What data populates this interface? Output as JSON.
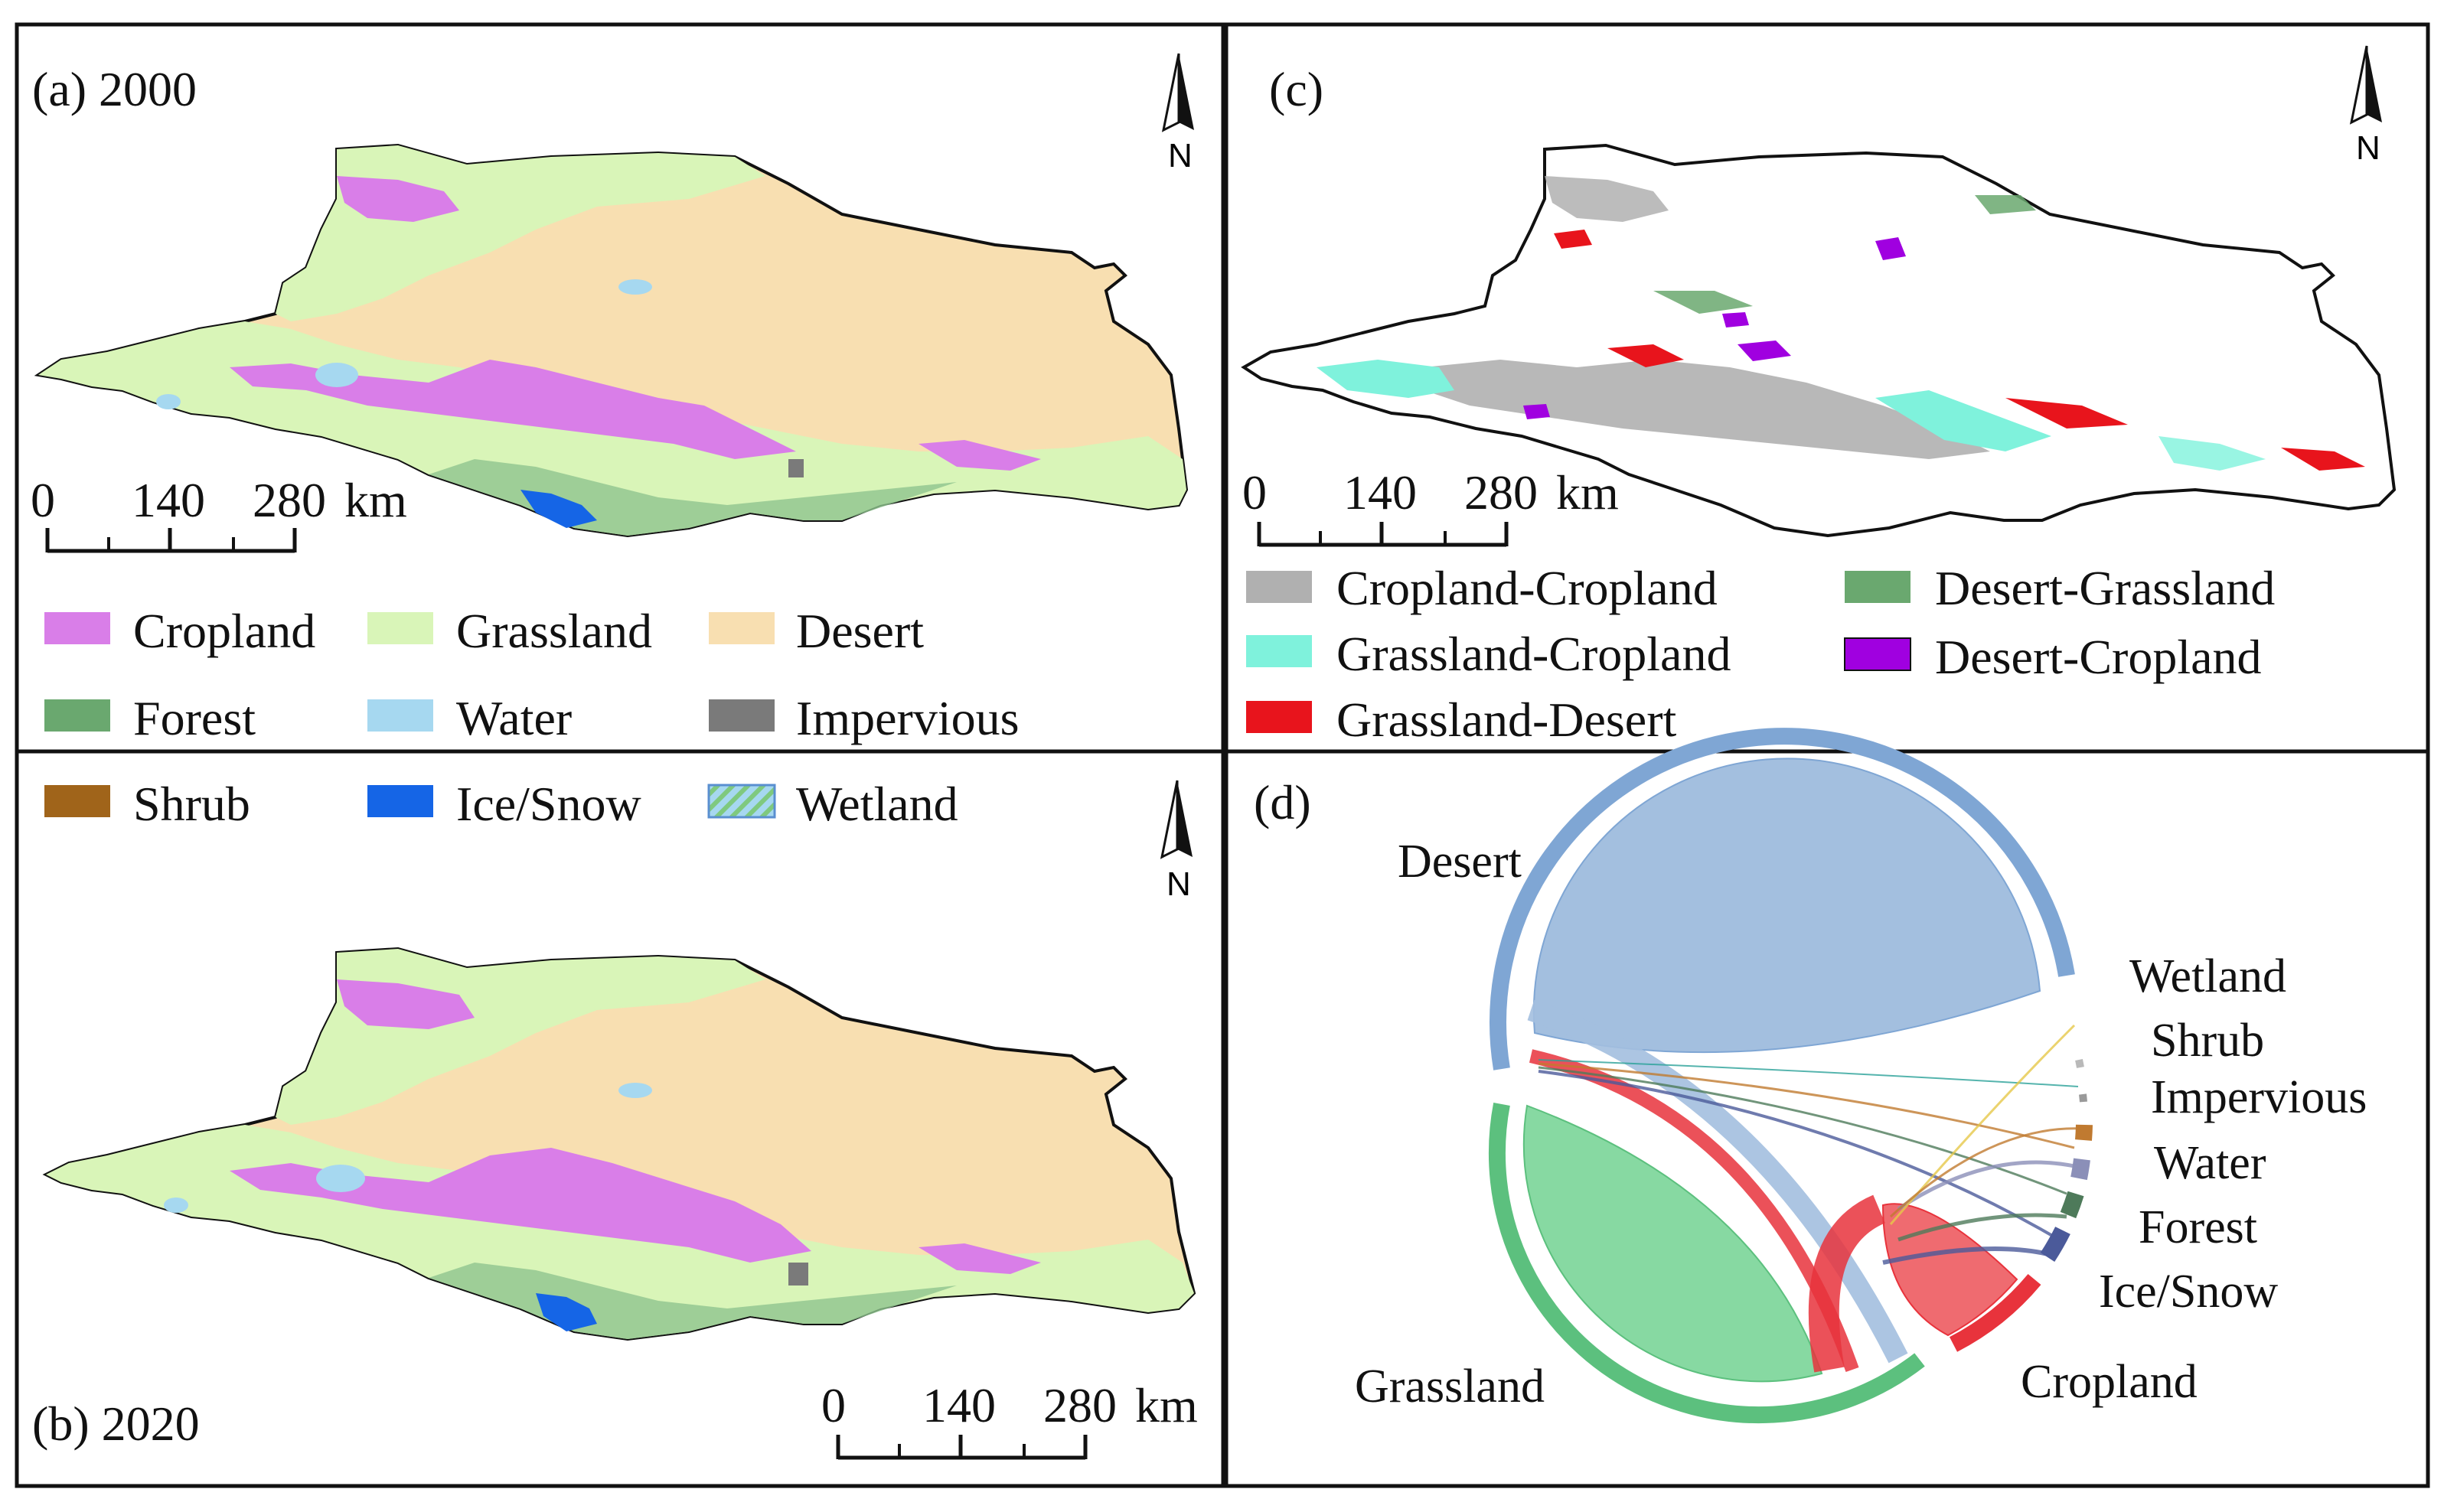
{
  "panels": {
    "a": {
      "label": "(a) 2000"
    },
    "b": {
      "label": "(b) 2020"
    },
    "c": {
      "label": "(c)"
    },
    "d": {
      "label": "(d)"
    }
  },
  "north_label": "N",
  "scale_bar": {
    "ticks": [
      "0",
      "140",
      "280"
    ],
    "unit": "km"
  },
  "land_cover_legend": [
    {
      "name": "Cropland",
      "color": "#d97ee8"
    },
    {
      "name": "Grassland",
      "color": "#d9f5b8"
    },
    {
      "name": "Desert",
      "color": "#f8dfb1"
    },
    {
      "name": "Forest",
      "color": "#6aa86f"
    },
    {
      "name": "Water",
      "color": "#a6d8f0"
    },
    {
      "name": "Impervious",
      "color": "#7a7a7a"
    },
    {
      "name": "Shrub",
      "color": "#a0641a"
    },
    {
      "name": "Ice/Snow",
      "color": "#1565e6"
    },
    {
      "name": "Wetland",
      "color": "#7fc97f",
      "pattern": "hatched"
    }
  ],
  "transition_legend": [
    {
      "name": "Cropland-Cropland",
      "color": "#b0b0b0"
    },
    {
      "name": "Grassland-Cropland",
      "color": "#7ff2dc"
    },
    {
      "name": "Grassland-Desert",
      "color": "#e8141c"
    },
    {
      "name": "Desert-Grassland",
      "color": "#6aa86f"
    },
    {
      "name": "Desert-Cropland",
      "color": "#a000e0"
    }
  ],
  "chord_labels": {
    "desert": "Desert",
    "grassland": "Grassland",
    "cropland": "Cropland",
    "wetland": "Wetland",
    "shrub": "Shrub",
    "impervious": "Impervious",
    "water": "Water",
    "forest": "Forest",
    "ice_snow": "Ice/Snow"
  },
  "chord_colors": {
    "desert": "#7fa6d4",
    "grassland": "#5cc07e",
    "cropland": "#e8333c",
    "wetland": "#b9b9b9",
    "shrub": "#9a9a9a",
    "impervious": "#c07a30",
    "water": "#8b8fb8",
    "forest": "#4e7a5a",
    "ice_snow": "#4b5a9a"
  }
}
